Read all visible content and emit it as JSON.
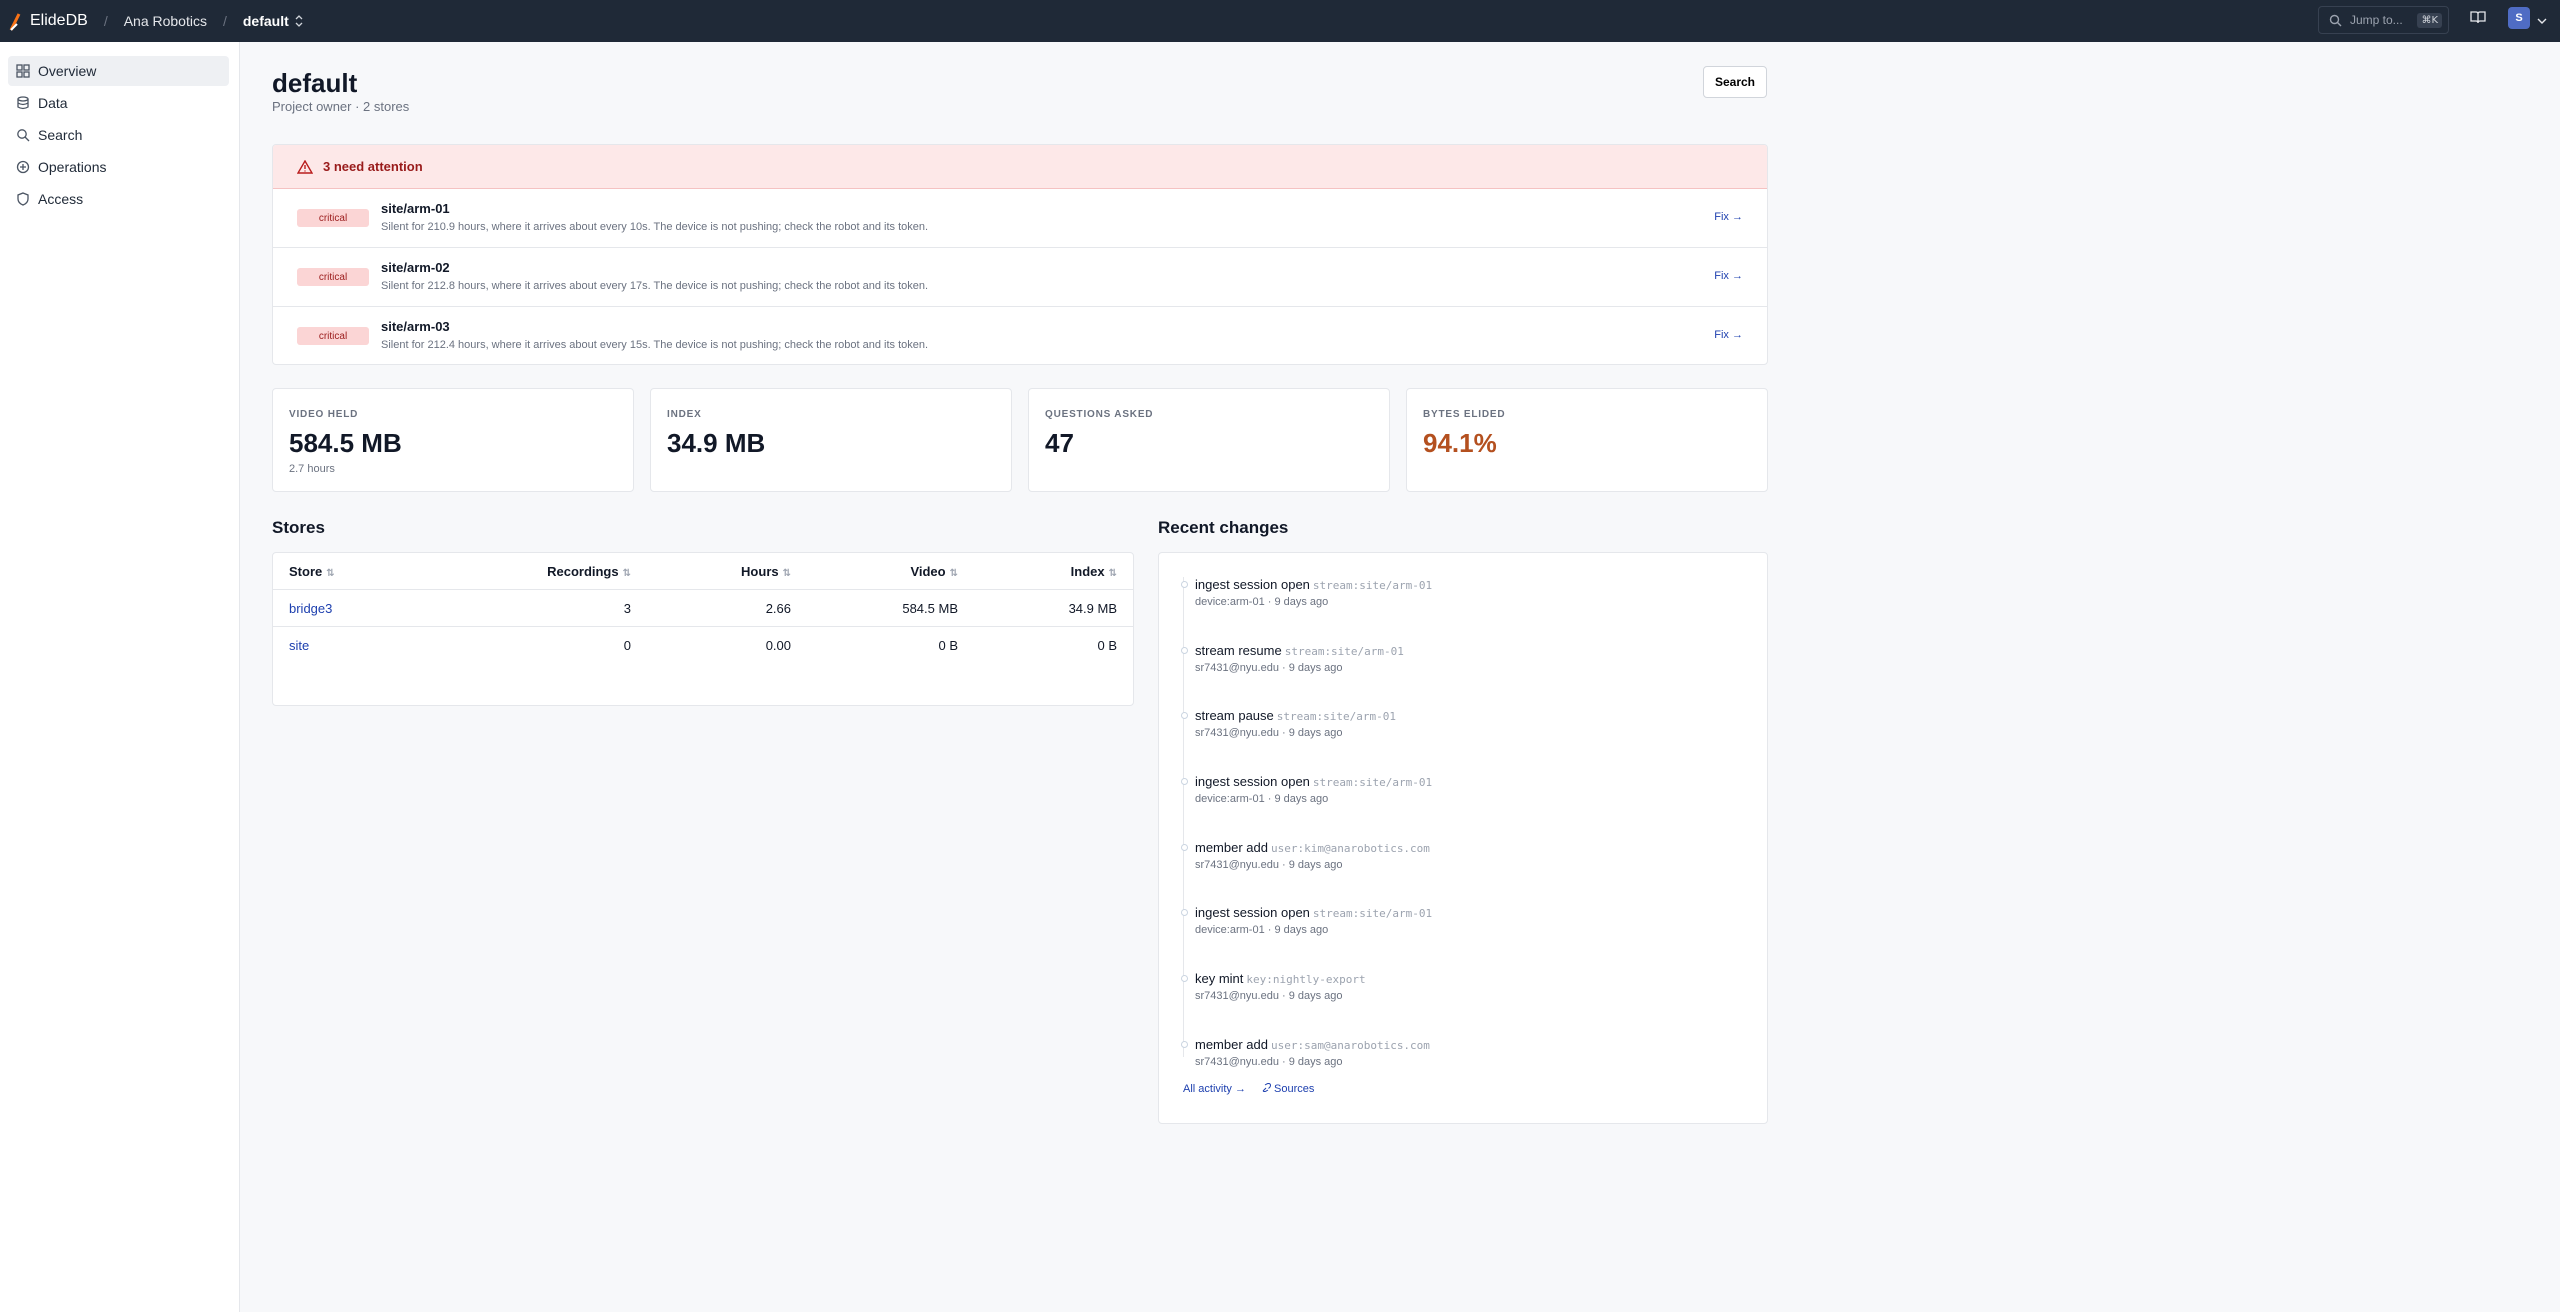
{
  "topbar": {
    "app_name": "ElideDB",
    "org": "Ana Robotics",
    "project": "default",
    "jump_placeholder": "Jump to...",
    "jump_shortcut": "⌘K",
    "avatar_initial": "S"
  },
  "sidebar": {
    "items": [
      {
        "label": "Overview",
        "icon": "overview-icon"
      },
      {
        "label": "Data",
        "icon": "database-icon"
      },
      {
        "label": "Search",
        "icon": "search-icon"
      },
      {
        "label": "Operations",
        "icon": "operations-icon"
      },
      {
        "label": "Access",
        "icon": "shield-icon"
      }
    ]
  },
  "header": {
    "title": "default",
    "subtitle": "Project owner · 2 stores",
    "search_label": "Search"
  },
  "attention": {
    "title": "3 need attention",
    "items": [
      {
        "severity": "critical",
        "name": "site/arm-01",
        "description": "Silent for 210.9 hours, where it arrives about every 10s. The device is not pushing; check the robot and its token.",
        "action": "Fix →"
      },
      {
        "severity": "critical",
        "name": "site/arm-02",
        "description": "Silent for 212.8 hours, where it arrives about every 17s. The device is not pushing; check the robot and its token.",
        "action": "Fix →"
      },
      {
        "severity": "critical",
        "name": "site/arm-03",
        "description": "Silent for 212.4 hours, where it arrives about every 15s. The device is not pushing; check the robot and its token.",
        "action": "Fix →"
      }
    ]
  },
  "stats": [
    {
      "label": "VIDEO HELD",
      "value": "584.5 MB",
      "sub": "2.7 hours"
    },
    {
      "label": "INDEX",
      "value": "34.9 MB",
      "sub": ""
    },
    {
      "label": "QUESTIONS ASKED",
      "value": "47",
      "sub": ""
    },
    {
      "label": "BYTES ELIDED",
      "value": "94.1%",
      "sub": ""
    }
  ],
  "stores": {
    "title": "Stores",
    "columns": [
      "Store",
      "Recordings",
      "Hours",
      "Video",
      "Index"
    ],
    "sort_glyph": "⇅",
    "rows": [
      {
        "store": "bridge3",
        "recordings": "3",
        "hours": "2.66",
        "video": "584.5 MB",
        "index": "34.9 MB"
      },
      {
        "store": "site",
        "recordings": "0",
        "hours": "0.00",
        "video": "0 B",
        "index": "0 B"
      }
    ]
  },
  "changes": {
    "title": "Recent changes",
    "items": [
      {
        "action": "ingest session open",
        "target": "stream:site/arm-01",
        "actor": "device:arm-01 · 9 days ago"
      },
      {
        "action": "stream resume",
        "target": "stream:site/arm-01",
        "actor": "sr7431@nyu.edu · 9 days ago"
      },
      {
        "action": "stream pause",
        "target": "stream:site/arm-01",
        "actor": "sr7431@nyu.edu · 9 days ago"
      },
      {
        "action": "ingest session open",
        "target": "stream:site/arm-01",
        "actor": "device:arm-01 · 9 days ago"
      },
      {
        "action": "member add",
        "target": "user:kim@anarobotics.com",
        "actor": "sr7431@nyu.edu · 9 days ago"
      },
      {
        "action": "ingest session open",
        "target": "stream:site/arm-01",
        "actor": "device:arm-01 · 9 days ago"
      },
      {
        "action": "key mint",
        "target": "key:nightly-export",
        "actor": "sr7431@nyu.edu · 9 days ago"
      },
      {
        "action": "member add",
        "target": "user:sam@anarobotics.com",
        "actor": "sr7431@nyu.edu · 9 days ago"
      }
    ],
    "all_activity": "All activity →",
    "sources": "Sources"
  },
  "colors": {
    "topbar": "#1f2937",
    "critical_bg": "#fbd5d5",
    "attention_bg": "#fde8e8",
    "accent_orange": "#b4501f",
    "link": "#1e40af"
  }
}
